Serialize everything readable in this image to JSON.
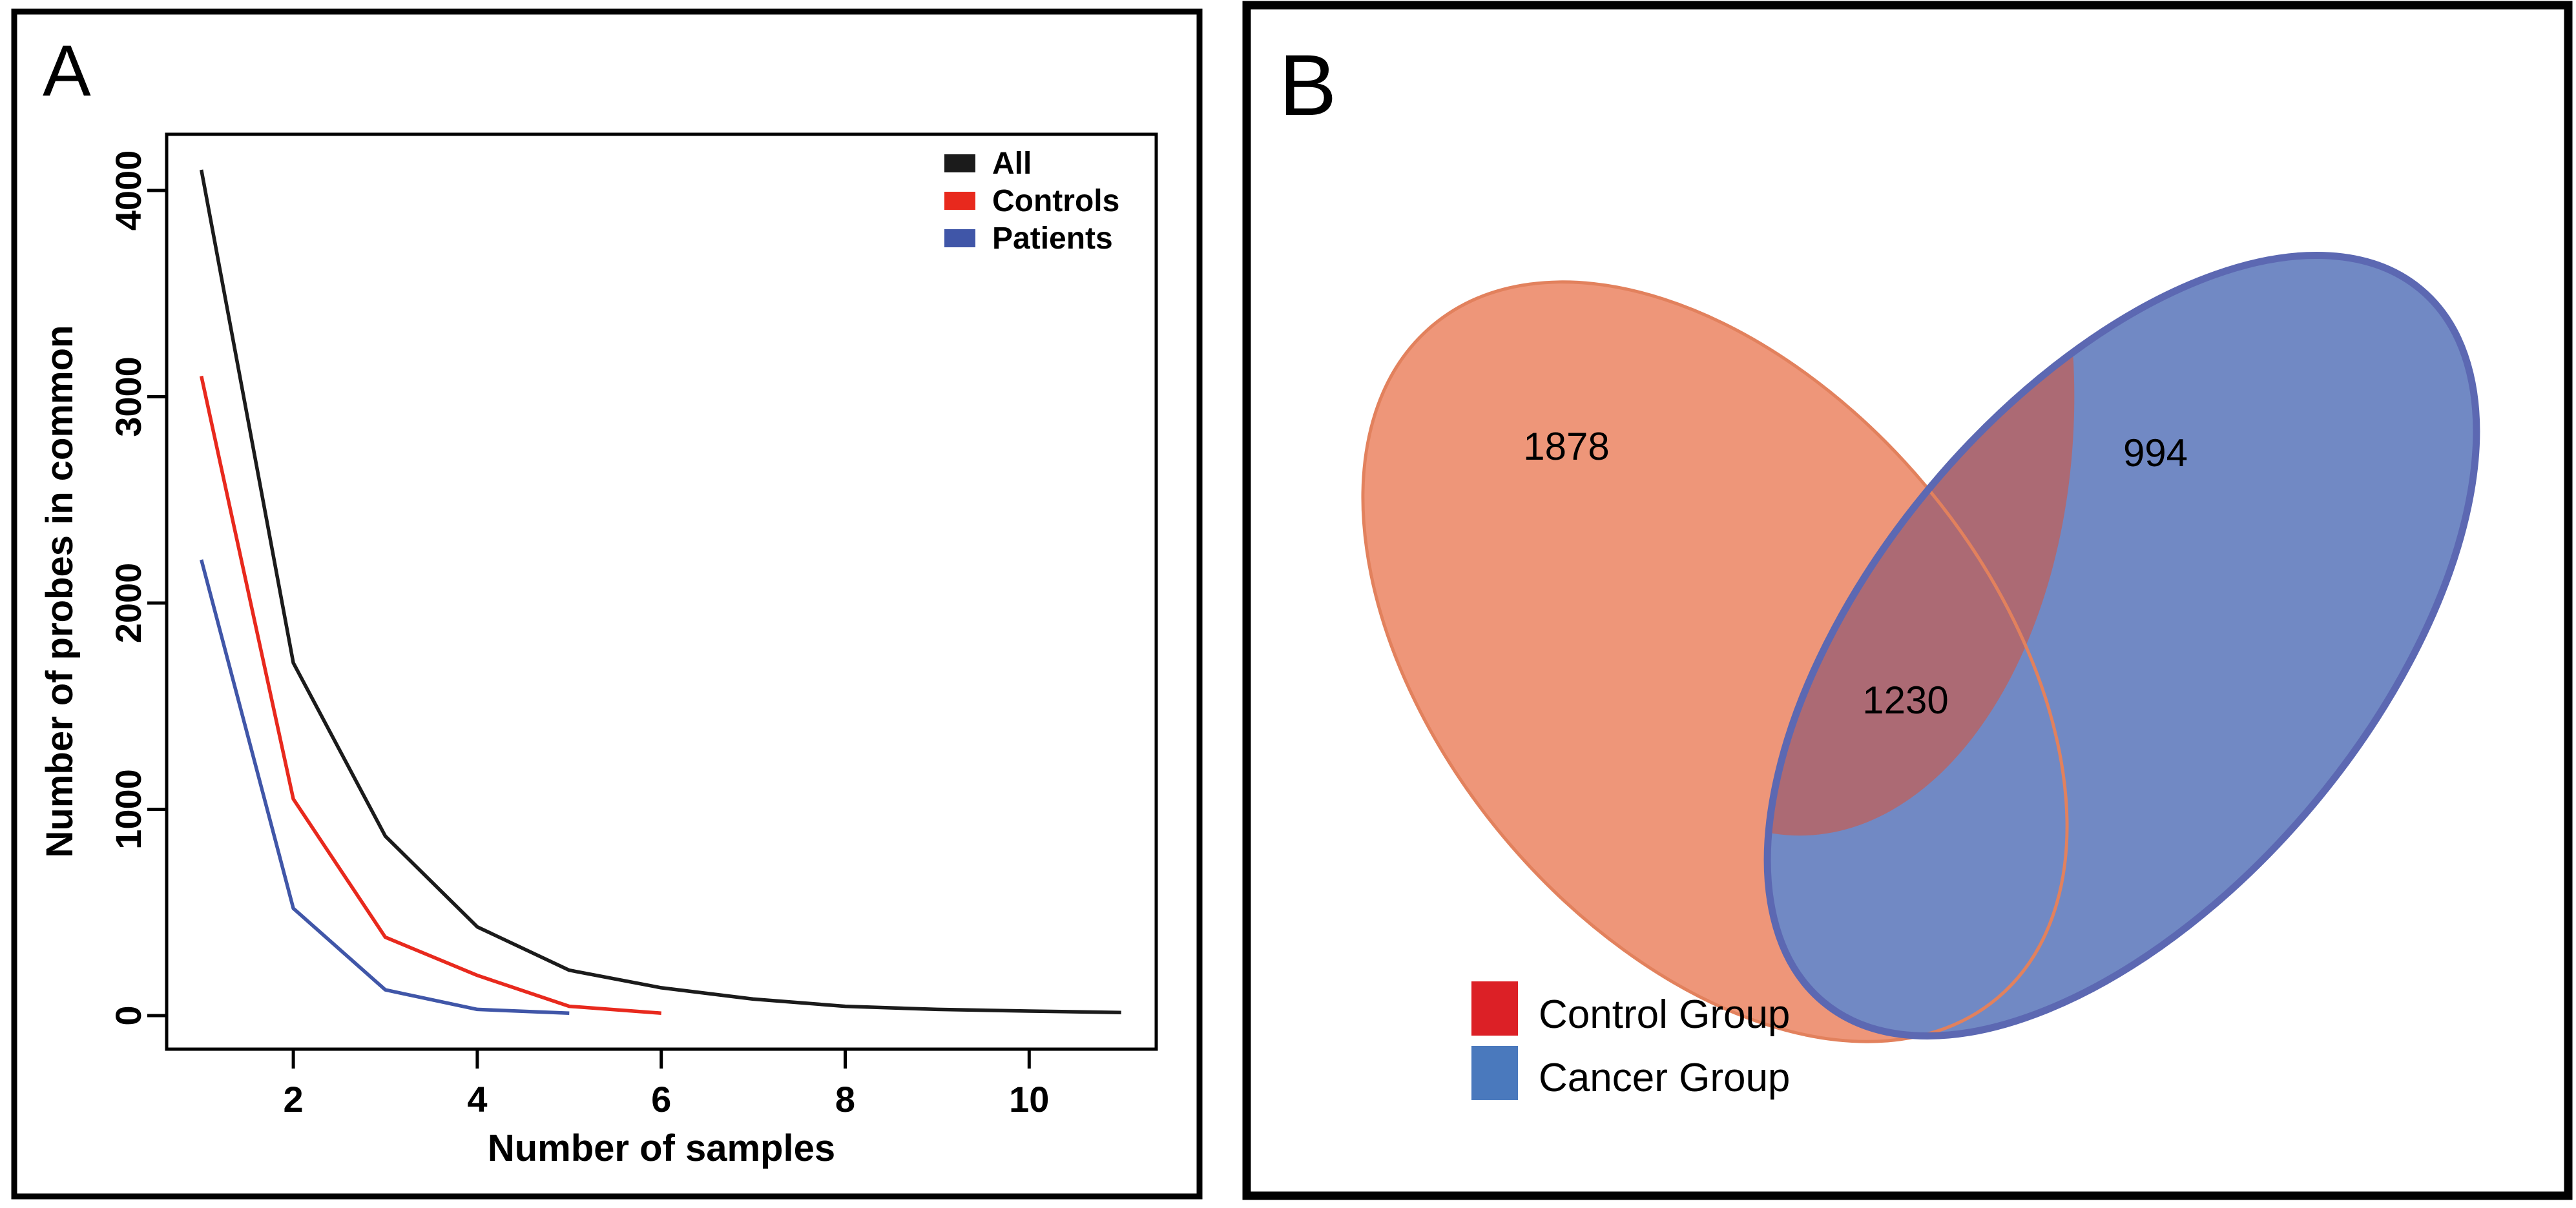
{
  "figure": {
    "background": "#ffffff"
  },
  "panel_a": {
    "label": "A"
  },
  "panel_b": {
    "label": "B"
  },
  "chart_data": [
    {
      "type": "line",
      "title": "",
      "xlabel": "Number of samples",
      "ylabel": "Number of probes in common",
      "x_ticks": [
        2,
        4,
        6,
        8,
        10
      ],
      "y_ticks": [
        0,
        1000,
        2000,
        3000,
        4000
      ],
      "xlim": [
        0.62,
        11.38
      ],
      "ylim": [
        -163,
        4272
      ],
      "grid": false,
      "legend_position": "top-right",
      "series": [
        {
          "name": "All",
          "color": "#1B1B1B",
          "x": [
            1,
            2,
            3,
            4,
            5,
            6,
            7,
            8,
            9,
            10,
            11
          ],
          "values": [
            4100,
            1710,
            870,
            430,
            220,
            135,
            80,
            45,
            30,
            22,
            15
          ]
        },
        {
          "name": "Controls",
          "color": "#E8291D",
          "x": [
            1,
            2,
            3,
            4,
            5,
            6
          ],
          "values": [
            3100,
            1050,
            380,
            195,
            45,
            12
          ]
        },
        {
          "name": "Patients",
          "color": "#4056A8",
          "x": [
            1,
            2,
            3,
            4,
            5
          ],
          "values": [
            2210,
            520,
            125,
            30,
            12
          ]
        }
      ]
    },
    {
      "type": "venn",
      "title": "",
      "sets": [
        {
          "name": "Control Group",
          "legend_color": "#DC2026",
          "ellipse_fill": "#EE9679",
          "ellipse_edge": "#E2815D",
          "unique": 1878
        },
        {
          "name": "Cancer Group",
          "legend_color": "#4A79BD",
          "ellipse_fill": "#7189C4",
          "ellipse_edge": "#5C68B2",
          "unique": 994
        }
      ],
      "overlap": 1230,
      "overlap_fill": "#AC6A74"
    }
  ]
}
